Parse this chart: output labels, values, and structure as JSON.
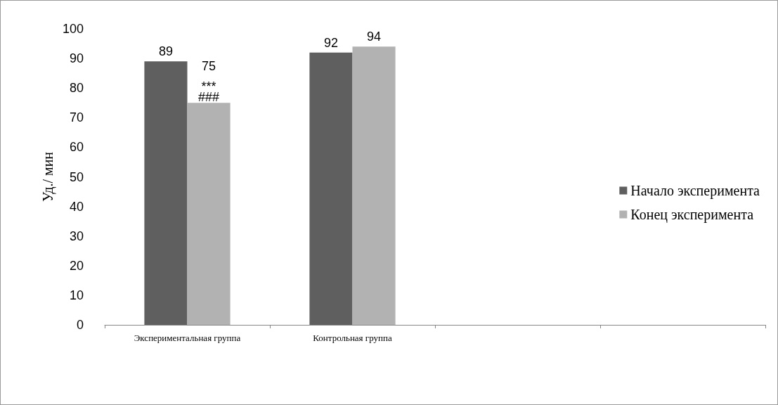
{
  "chart_data": {
    "type": "bar",
    "ylabel": "Уд./ мин",
    "categories": [
      "Экспериментальная группа",
      "Контрольная группа",
      null,
      null
    ],
    "series": [
      {
        "name": "Начало эксперимента",
        "color": "#5f5f5f",
        "values": [
          89,
          92,
          null,
          null
        ]
      },
      {
        "name": "Конец эксперимента",
        "color": "#b2b2b2",
        "values": [
          75,
          94,
          null,
          null
        ]
      }
    ],
    "ylim": [
      0,
      100
    ],
    "yticks": [
      0,
      10,
      20,
      30,
      40,
      50,
      60,
      70,
      80,
      90,
      100
    ],
    "grid": false,
    "legend": "right",
    "data_labels": true,
    "annotations": [
      {
        "text": "***",
        "x": "Экспериментальная группа",
        "y": 80.5
      },
      {
        "text": "###",
        "x": "Экспериментальная группа",
        "y": 77
      }
    ]
  }
}
